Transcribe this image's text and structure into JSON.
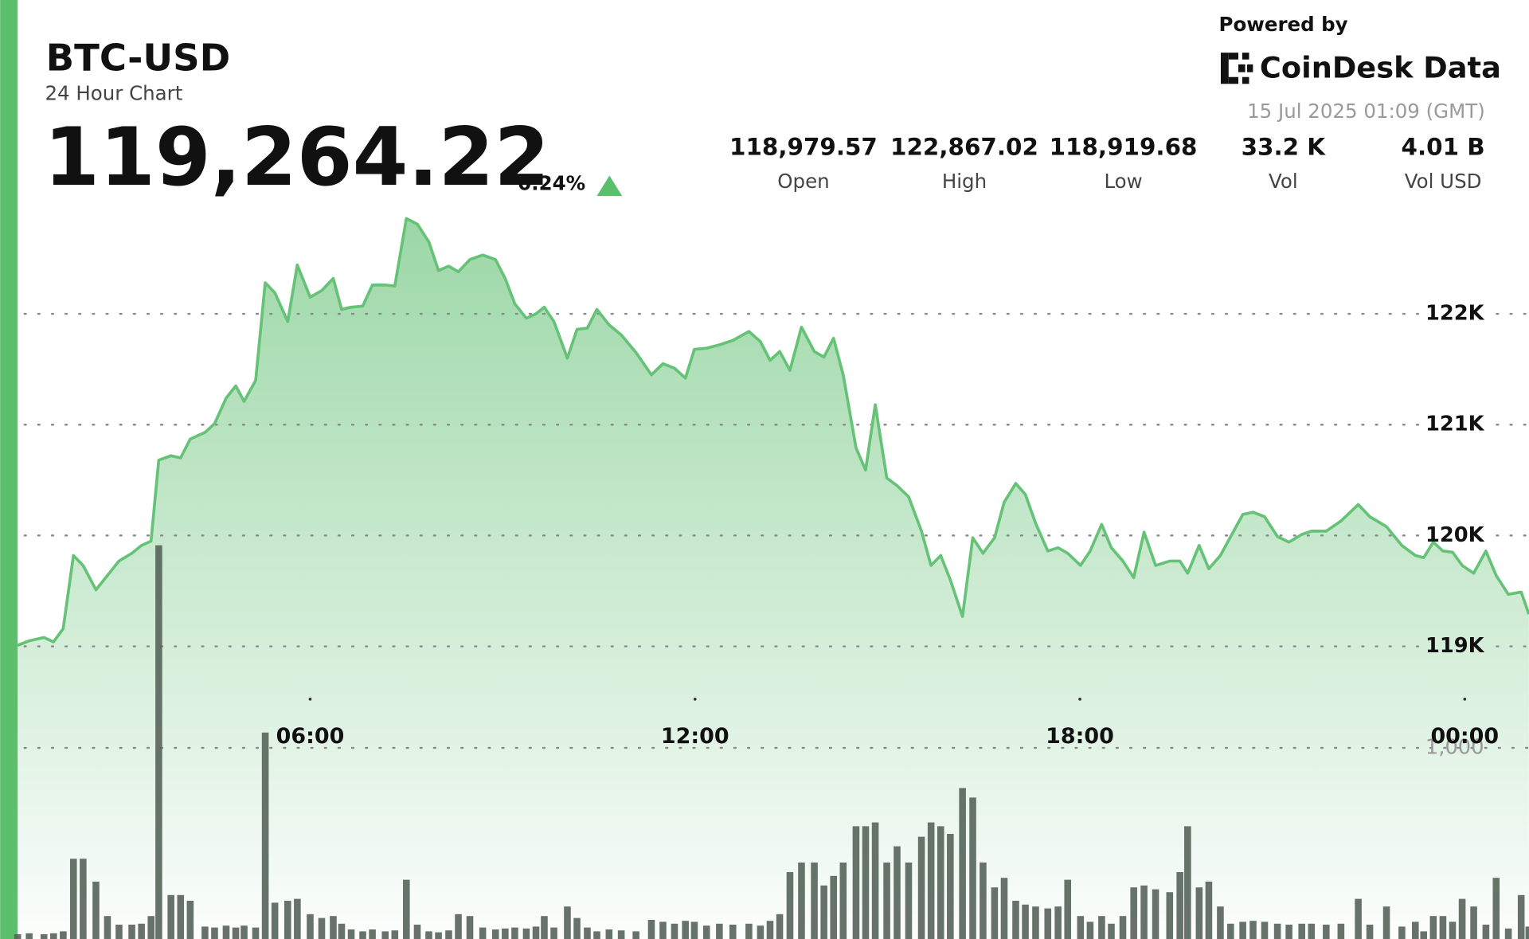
{
  "header": {
    "symbol": "BTC-USD",
    "subtitle": "24 Hour Chart",
    "price": "119,264.22",
    "change": "0.24%"
  },
  "stats": [
    {
      "value": "118,979.57",
      "label": "Open"
    },
    {
      "value": "122,867.02",
      "label": "High"
    },
    {
      "value": "118,919.68",
      "label": "Low"
    },
    {
      "value": "33.2 K",
      "label": "Vol"
    },
    {
      "value": "4.01 B",
      "label": "Vol USD"
    }
  ],
  "branding": {
    "powered": "Powered by",
    "name": "CoinDesk Data",
    "timestamp": "15 Jul 2025 01:09 (GMT)"
  },
  "chart_data": {
    "type": "line",
    "xlim": [
      1.44,
      25.0
    ],
    "xticks": [
      {
        "value": 6,
        "label": "06:00"
      },
      {
        "value": 12,
        "label": "12:00"
      },
      {
        "value": 18,
        "label": "18:00"
      },
      {
        "value": 24,
        "label": "00:00"
      }
    ],
    "ylim": [
      116360,
      122940
    ],
    "yticks": [
      {
        "value": 119000,
        "label": "119K"
      },
      {
        "value": 120000,
        "label": "120K"
      },
      {
        "value": 121000,
        "label": "121K"
      },
      {
        "value": 122000,
        "label": "122K"
      }
    ],
    "y2lim": [
      0,
      3816
    ],
    "y2ticks": [
      {
        "value": 1000,
        "label": "1,000"
      }
    ],
    "grid": true,
    "x": [
      1.44,
      1.62,
      1.85,
      2.0,
      2.15,
      2.31,
      2.46,
      2.66,
      2.84,
      3.02,
      3.22,
      3.37,
      3.52,
      3.64,
      3.83,
      3.98,
      4.13,
      4.36,
      4.51,
      4.69,
      4.84,
      4.97,
      5.15,
      5.3,
      5.45,
      5.65,
      5.8,
      6.0,
      6.18,
      6.36,
      6.49,
      6.64,
      6.82,
      6.97,
      7.17,
      7.32,
      7.5,
      7.67,
      7.85,
      8.0,
      8.16,
      8.31,
      8.49,
      8.69,
      8.89,
      9.04,
      9.19,
      9.37,
      9.52,
      9.65,
      9.8,
      10.01,
      10.16,
      10.32,
      10.47,
      10.66,
      10.85,
      11.08,
      11.32,
      11.5,
      11.68,
      11.85,
      11.99,
      12.18,
      12.38,
      12.59,
      12.84,
      13.02,
      13.17,
      13.32,
      13.48,
      13.66,
      13.86,
      14.01,
      14.16,
      14.31,
      14.51,
      14.66,
      14.81,
      14.99,
      15.15,
      15.33,
      15.53,
      15.68,
      15.83,
      15.98,
      16.17,
      16.33,
      16.49,
      16.67,
      16.82,
      17.0,
      17.15,
      17.31,
      17.5,
      17.66,
      17.81,
      18.01,
      18.16,
      18.34,
      18.49,
      18.67,
      18.84,
      19.0,
      19.18,
      19.4,
      19.56,
      19.68,
      19.86,
      20.01,
      20.19,
      20.35,
      20.54,
      20.7,
      20.88,
      21.08,
      21.26,
      21.46,
      21.61,
      21.84,
      22.07,
      22.34,
      22.52,
      22.78,
      23.02,
      23.23,
      23.36,
      23.51,
      23.66,
      23.81,
      23.96,
      24.14,
      24.33,
      24.49,
      24.68,
      24.88,
      25.0
    ],
    "series": [
      {
        "color": "#66c277",
        "values": [
          119010,
          119050,
          119080,
          119040,
          119160,
          119820,
          119730,
          119510,
          119640,
          119770,
          119840,
          119910,
          119950,
          120680,
          120720,
          120700,
          120870,
          120930,
          121010,
          121240,
          121350,
          121210,
          121400,
          122280,
          122190,
          121930,
          122440,
          122150,
          122210,
          122320,
          122040,
          122060,
          122070,
          122260,
          122260,
          122250,
          122860,
          122810,
          122650,
          122390,
          122430,
          122380,
          122490,
          122530,
          122490,
          122320,
          122090,
          121960,
          122000,
          122060,
          121930,
          121600,
          121860,
          121870,
          122040,
          121900,
          121810,
          121650,
          121450,
          121550,
          121510,
          121420,
          121680,
          121690,
          121720,
          121760,
          121840,
          121750,
          121580,
          121660,
          121490,
          121880,
          121660,
          121610,
          121780,
          121450,
          120790,
          120590,
          121180,
          120520,
          120450,
          120350,
          120040,
          119730,
          119820,
          119600,
          119270,
          119980,
          119840,
          119980,
          120300,
          120470,
          120370,
          120110,
          119860,
          119890,
          119840,
          119730,
          119860,
          120100,
          119890,
          119770,
          119620,
          120030,
          119730,
          119770,
          119770,
          119660,
          119910,
          119700,
          119820,
          119990,
          120190,
          120210,
          120170,
          119990,
          119940,
          120010,
          120040,
          120040,
          120130,
          120280,
          120170,
          120080,
          119910,
          119820,
          119800,
          119940,
          119860,
          119850,
          119730,
          119660,
          119860,
          119640,
          119470,
          119490,
          119290
        ]
      },
      {
        "color": "#56645a",
        "axis": "y2",
        "values": [
          25,
          30,
          25,
          30,
          40,
          420,
          420,
          300,
          120,
          75,
          75,
          80,
          120,
          2060,
          230,
          230,
          200,
          65,
          60,
          70,
          60,
          70,
          60,
          1080,
          190,
          200,
          210,
          130,
          110,
          120,
          80,
          50,
          40,
          50,
          40,
          45,
          310,
          75,
          40,
          35,
          45,
          130,
          120,
          60,
          50,
          55,
          60,
          55,
          65,
          120,
          60,
          170,
          110,
          60,
          40,
          50,
          45,
          40,
          100,
          90,
          80,
          95,
          90,
          70,
          80,
          75,
          80,
          70,
          95,
          130,
          350,
          400,
          400,
          280,
          330,
          400,
          590,
          590,
          610,
          400,
          485,
          400,
          535,
          610,
          590,
          550,
          790,
          740,
          400,
          270,
          320,
          200,
          180,
          170,
          160,
          170,
          310,
          120,
          90,
          120,
          80,
          120,
          270,
          280,
          260,
          245,
          350,
          590,
          270,
          300,
          170,
          80,
          90,
          95,
          90,
          80,
          75,
          80,
          80,
          75,
          80,
          210,
          75,
          170,
          65,
          90,
          40,
          120,
          120,
          90,
          210,
          170,
          75,
          320,
          55,
          230,
          65
        ]
      }
    ]
  }
}
